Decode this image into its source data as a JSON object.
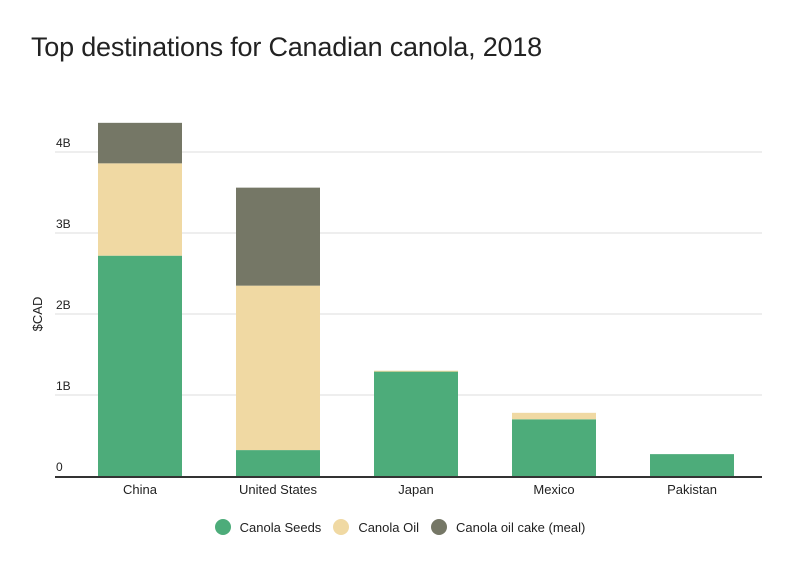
{
  "chart_data": {
    "type": "bar",
    "stacked": true,
    "title": "Top destinations for Canadian canola, 2018",
    "xlabel": "",
    "ylabel": "$CAD",
    "ylim": [
      0,
      4.5
    ],
    "yticks": [
      0,
      1,
      2,
      3,
      4
    ],
    "ytick_labels": [
      "0",
      "1B",
      "2B",
      "3B",
      "4B"
    ],
    "grid": true,
    "legend_position": "bottom",
    "categories": [
      "China",
      "United States",
      "Japan",
      "Mexico",
      "Pakistan"
    ],
    "series": [
      {
        "name": "Canola Seeds",
        "color": "#4dac7a",
        "values": [
          2.72,
          0.32,
          1.29,
          0.7,
          0.27
        ]
      },
      {
        "name": "Canola Oil",
        "color": "#f0d9a3",
        "values": [
          1.14,
          2.03,
          0.01,
          0.08,
          0.0
        ]
      },
      {
        "name": "Canola oil cake (meal)",
        "color": "#757766",
        "values": [
          0.5,
          1.21,
          0.0,
          0.0,
          0.0
        ]
      }
    ],
    "unit": "billions CAD"
  }
}
